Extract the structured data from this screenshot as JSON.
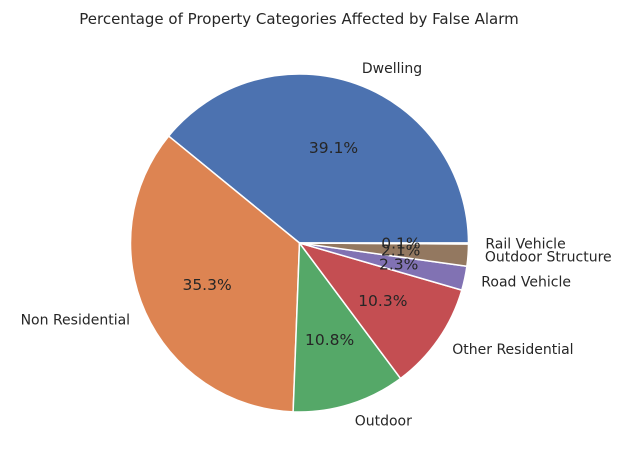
{
  "chart_data": {
    "type": "pie",
    "title": "Percentage of Property Categories Affected by False Alarm",
    "start_angle_deg": 0,
    "direction": "counterclockwise",
    "slices": [
      {
        "label": "Dwelling",
        "pct": "39.1%",
        "value": 39.1,
        "color": "#4c72b0"
      },
      {
        "label": "Non Residential",
        "pct": "35.3%",
        "value": 35.3,
        "color": "#dd8452"
      },
      {
        "label": "Outdoor",
        "pct": "10.8%",
        "value": 10.8,
        "color": "#55a868"
      },
      {
        "label": "Other Residential",
        "pct": "10.3%",
        "value": 10.3,
        "color": "#c44e52"
      },
      {
        "label": "Road Vehicle",
        "pct": "2.3%",
        "value": 2.3,
        "color": "#8172b3"
      },
      {
        "label": "Outdoor Structure",
        "pct": "2.1%",
        "value": 2.1,
        "color": "#937860"
      },
      {
        "label": "Rail Vehicle",
        "pct": "0.1%",
        "value": 0.1,
        "color": "#da8bc3"
      }
    ]
  }
}
